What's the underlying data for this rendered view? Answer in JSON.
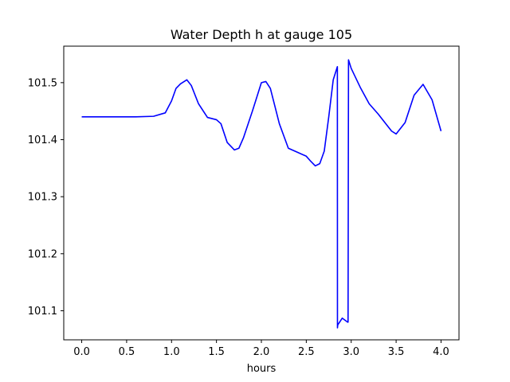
{
  "chart_data": {
    "type": "line",
    "title": "Water Depth h at gauge 105",
    "xlabel": "hours",
    "ylabel": "",
    "xlim": [
      -0.2,
      4.2
    ],
    "ylim": [
      101.049,
      101.564
    ],
    "xticks": [
      0.0,
      0.5,
      1.0,
      1.5,
      2.0,
      2.5,
      3.0,
      3.5,
      4.0
    ],
    "xtick_labels": [
      "0.0",
      "0.5",
      "1.0",
      "1.5",
      "2.0",
      "2.5",
      "3.0",
      "3.5",
      "4.0"
    ],
    "yticks": [
      101.1,
      101.2,
      101.3,
      101.4,
      101.5
    ],
    "ytick_labels": [
      "101.1",
      "101.2",
      "101.3",
      "101.4",
      "101.5"
    ],
    "grid": false,
    "series": [
      {
        "color": "#0000ff",
        "x": [
          0.0,
          0.3,
          0.6,
          0.8,
          0.93,
          1.0,
          1.05,
          1.1,
          1.17,
          1.22,
          1.3,
          1.4,
          1.5,
          1.55,
          1.62,
          1.7,
          1.75,
          1.8,
          1.9,
          2.0,
          2.05,
          2.1,
          2.2,
          2.3,
          2.4,
          2.5,
          2.55,
          2.6,
          2.65,
          2.7,
          2.75,
          2.8,
          2.846,
          2.847,
          2.85,
          2.9,
          2.96,
          2.965,
          2.97,
          3.0,
          3.1,
          3.2,
          3.3,
          3.4,
          3.45,
          3.5,
          3.6,
          3.7,
          3.8,
          3.9,
          4.0
        ],
        "y": [
          101.44,
          101.44,
          101.44,
          101.441,
          101.447,
          101.468,
          101.49,
          101.498,
          101.505,
          101.495,
          101.463,
          101.439,
          101.435,
          101.428,
          101.395,
          101.382,
          101.385,
          101.403,
          101.45,
          101.5,
          101.502,
          101.49,
          101.428,
          101.385,
          101.378,
          101.371,
          101.362,
          101.354,
          101.358,
          101.38,
          101.44,
          101.505,
          101.528,
          101.07,
          101.075,
          101.087,
          101.08,
          101.08,
          101.54,
          101.525,
          101.492,
          101.463,
          101.445,
          101.425,
          101.415,
          101.41,
          101.43,
          101.478,
          101.497,
          101.47,
          101.415
        ]
      }
    ]
  }
}
